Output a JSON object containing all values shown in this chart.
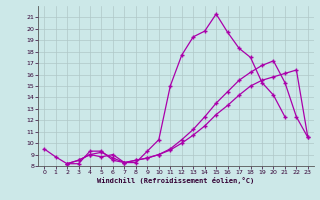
{
  "xlabel": "Windchill (Refroidissement éolien,°C)",
  "bg_color": "#cce8e8",
  "line_color": "#aa00aa",
  "grid_color": "#b0c8c8",
  "xlim": [
    -0.5,
    23.5
  ],
  "ylim": [
    8,
    22
  ],
  "xticks": [
    0,
    1,
    2,
    3,
    4,
    5,
    6,
    7,
    8,
    9,
    10,
    11,
    12,
    13,
    14,
    15,
    16,
    17,
    18,
    19,
    20,
    21,
    22,
    23
  ],
  "yticks": [
    8,
    9,
    10,
    11,
    12,
    13,
    14,
    15,
    16,
    17,
    18,
    19,
    20,
    21
  ],
  "curve1_x": [
    0,
    1,
    2,
    3,
    4,
    5,
    6,
    7,
    8,
    9,
    10,
    11,
    12,
    13,
    14,
    15,
    16,
    17,
    18,
    19,
    20,
    21
  ],
  "curve1_y": [
    9.5,
    8.8,
    8.2,
    8.2,
    9.3,
    9.3,
    8.5,
    8.3,
    8.3,
    9.3,
    10.3,
    15.0,
    17.7,
    19.3,
    19.8,
    21.3,
    19.7,
    18.3,
    17.5,
    15.3,
    14.2,
    12.3
  ],
  "curve2_x": [
    2,
    3,
    4,
    5,
    6,
    7,
    8,
    9,
    10,
    11,
    12,
    13,
    14,
    15,
    16,
    17,
    18,
    19,
    20,
    21,
    22,
    23
  ],
  "curve2_y": [
    8.2,
    8.5,
    9.0,
    9.2,
    8.7,
    8.3,
    8.5,
    8.7,
    9.0,
    9.4,
    10.0,
    10.7,
    11.5,
    12.5,
    13.3,
    14.2,
    15.0,
    15.5,
    15.8,
    16.1,
    16.4,
    10.5
  ],
  "curve3_x": [
    2,
    3,
    4,
    5,
    6,
    7,
    8,
    9,
    10,
    11,
    12,
    13,
    14,
    15,
    16,
    17,
    18,
    19,
    20,
    21,
    22,
    23
  ],
  "curve3_y": [
    8.2,
    8.5,
    9.0,
    8.8,
    9.0,
    8.3,
    8.5,
    8.7,
    9.0,
    9.5,
    10.3,
    11.2,
    12.3,
    13.5,
    14.5,
    15.5,
    16.2,
    16.8,
    17.2,
    15.3,
    12.3,
    10.5
  ]
}
